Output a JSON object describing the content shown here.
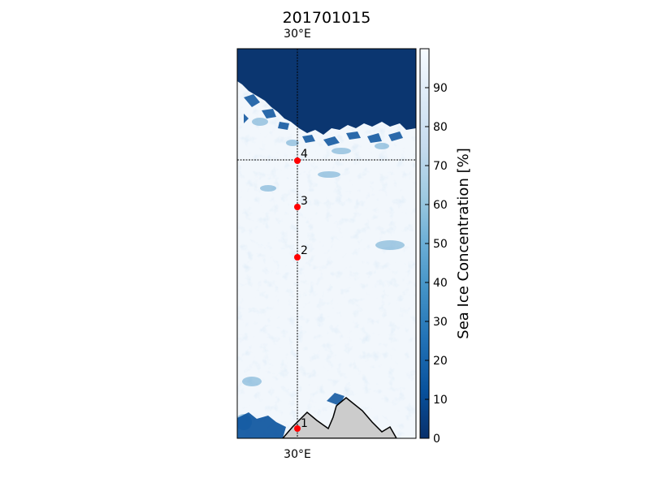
{
  "figure": {
    "title": "201701015",
    "lon_label_top": "30°E",
    "lon_label_bottom": "30°E"
  },
  "colorbar": {
    "label": "Sea Ice Concentration [%]",
    "ticks": [
      "0",
      "10",
      "20",
      "30",
      "40",
      "50",
      "60",
      "70",
      "80",
      "90"
    ],
    "tick_values": [
      0,
      10,
      20,
      30,
      40,
      50,
      60,
      70,
      80,
      90
    ],
    "range": [
      0,
      100
    ],
    "colormap": [
      "#08306b",
      "#08519c",
      "#2171b5",
      "#4292c6",
      "#6baed6",
      "#9ecae1",
      "#c6dbef",
      "#deebf7",
      "#f7fbff"
    ]
  },
  "map": {
    "ocean_color": "#0b3670",
    "ice_color": "#f2f7fc",
    "land_color": "#cccccc",
    "meridian": "30°E",
    "stations": [
      {
        "label": "1"
      },
      {
        "label": "2"
      },
      {
        "label": "3"
      },
      {
        "label": "4"
      }
    ]
  }
}
